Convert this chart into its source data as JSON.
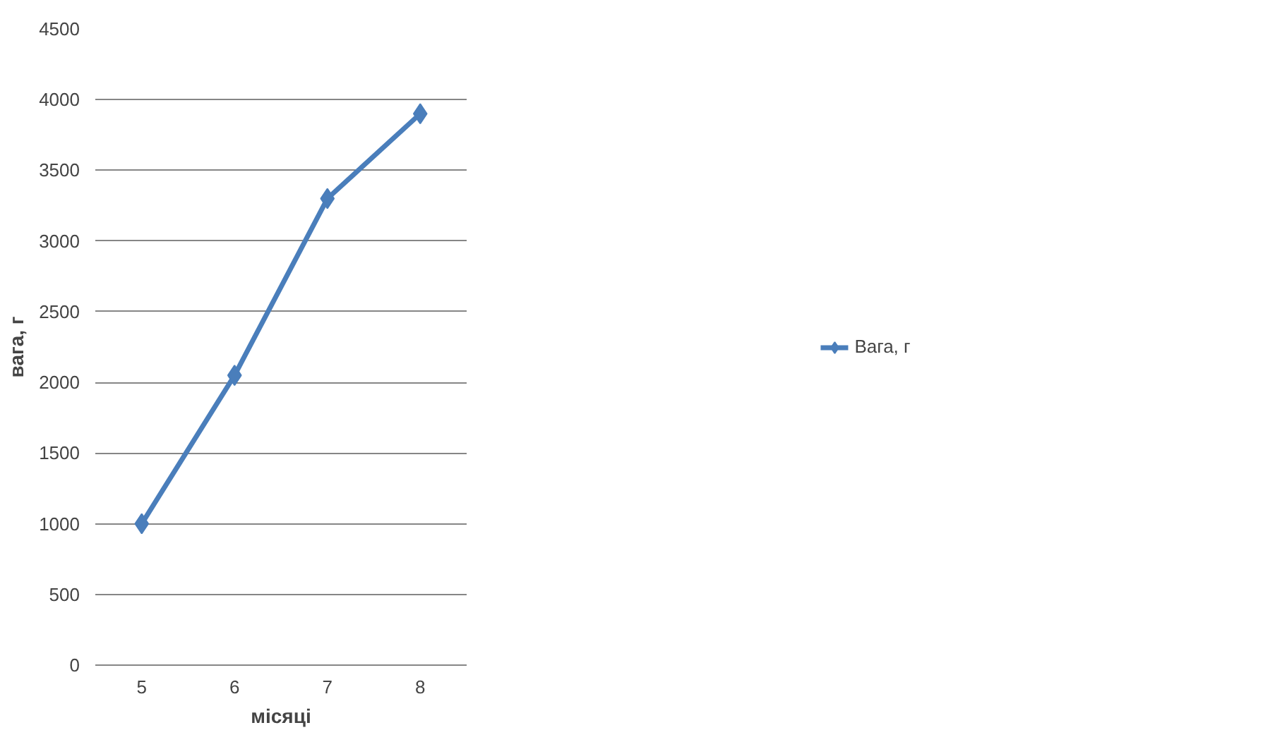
{
  "chart_data": {
    "type": "line",
    "xlabel": "місяці",
    "ylabel": "вага, г",
    "categories": [
      "5",
      "6",
      "7",
      "8"
    ],
    "series": [
      {
        "name": "Вага, г",
        "color": "#4a7ebb",
        "values": [
          1000,
          2050,
          3300,
          3900
        ]
      }
    ],
    "ylim": [
      0,
      4500
    ],
    "yticks": [
      0,
      500,
      1000,
      1500,
      2000,
      2500,
      3000,
      3500,
      4000,
      4500
    ],
    "grid": "y",
    "legend": "right",
    "marker": "diamond",
    "line_style": "solid"
  }
}
